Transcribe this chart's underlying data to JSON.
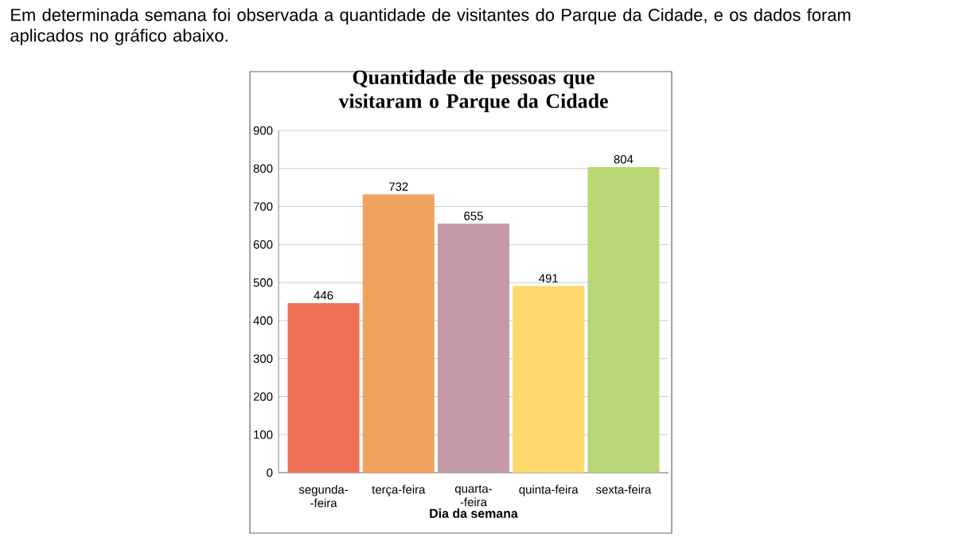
{
  "chart_data": {
    "type": "bar",
    "title": "Quantidade de pessoas que visitaram o Parque da Cidade",
    "xlabel": "Dia da semana",
    "annotations": [
      "Em determinada semana foi observada a quantidade de visitantes do Parque da Cidade, e os dados foram aplicados no gráfico abaixo."
    ],
    "categories": [
      "segunda- -feira",
      "terça-feira",
      "quarta- -feira",
      "quinta-feira",
      "sexta-feira"
    ],
    "values": [
      446,
      732,
      655,
      491,
      804
    ],
    "colors": [
      "#f07057",
      "#f0a35e",
      "#c49aa8",
      "#fdd96b",
      "#b8d877"
    ],
    "ylim": [
      0,
      900
    ],
    "yticks": [
      0,
      100,
      200,
      300,
      400,
      500,
      600,
      700,
      800,
      900
    ],
    "grid": "y",
    "data_labels": true
  }
}
